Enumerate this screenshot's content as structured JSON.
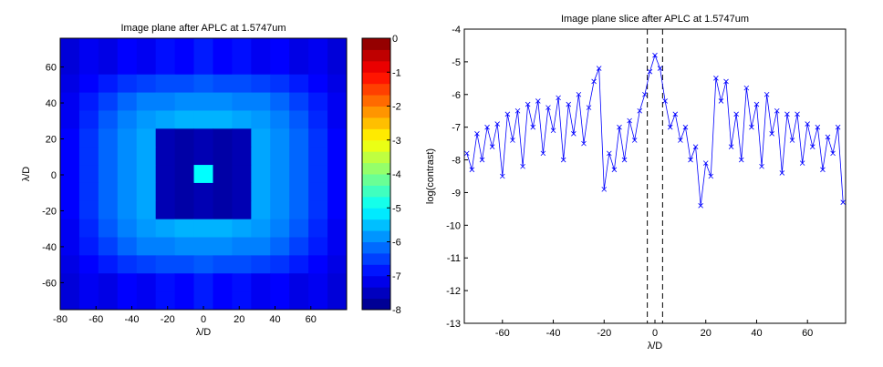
{
  "chart_data": [
    {
      "type": "heatmap",
      "title": "Image plane after APLC at 1.5747um",
      "xlabel": "λ/D",
      "ylabel": "λ/D",
      "xlim": [
        -80,
        80
      ],
      "ylim": [
        -75,
        76
      ],
      "xticks": [
        -80,
        -60,
        -40,
        -20,
        0,
        20,
        40,
        60
      ],
      "yticks": [
        -60,
        -40,
        -20,
        0,
        20,
        40,
        60
      ],
      "clim": [
        -8,
        0
      ],
      "cticks": [
        0,
        -1,
        -2,
        -3,
        -4,
        -5,
        -6,
        -7,
        -8
      ],
      "colormap": "jet",
      "z": [
        [
          -7.3,
          -7.1,
          -7.2,
          -7.0,
          -7.1,
          -6.9,
          -7.0,
          -6.8,
          -7.0,
          -6.9,
          -7.1,
          -7.0,
          -7.2,
          -7.1,
          -7.3
        ],
        [
          -7.3,
          -7.1,
          -7.2,
          -7.0,
          -7.1,
          -6.9,
          -7.0,
          -6.8,
          -7.0,
          -6.9,
          -7.1,
          -7.0,
          -7.2,
          -7.1,
          -7.3
        ],
        [
          -7.2,
          -7.0,
          -6.8,
          -6.6,
          -6.5,
          -6.4,
          -6.4,
          -6.3,
          -6.4,
          -6.4,
          -6.5,
          -6.6,
          -6.8,
          -7.0,
          -7.2
        ],
        [
          -7.1,
          -6.8,
          -6.5,
          -6.2,
          -6.0,
          -6.0,
          -5.9,
          -5.9,
          -5.9,
          -6.0,
          -6.0,
          -6.2,
          -6.5,
          -6.8,
          -7.1
        ],
        [
          -7.1,
          -6.7,
          -6.3,
          -6.0,
          -5.8,
          -5.7,
          -5.6,
          -5.6,
          -5.6,
          -5.7,
          -5.8,
          -6.0,
          -6.3,
          -6.7,
          -7.1
        ],
        [
          -7.0,
          -6.6,
          -6.2,
          -5.9,
          -5.7,
          -7.6,
          -7.7,
          -7.6,
          -7.7,
          -7.6,
          -5.7,
          -5.9,
          -6.2,
          -6.6,
          -7.0
        ],
        [
          -7.0,
          -6.6,
          -6.2,
          -5.9,
          -5.7,
          -7.6,
          -7.7,
          -7.6,
          -7.7,
          -7.6,
          -5.7,
          -5.9,
          -6.2,
          -6.6,
          -7.0
        ],
        [
          -7.0,
          -6.6,
          -6.2,
          -5.9,
          -5.7,
          -7.6,
          -7.7,
          -5.0,
          -7.7,
          -7.6,
          -5.7,
          -5.9,
          -6.2,
          -6.6,
          -7.0
        ],
        [
          -7.0,
          -6.6,
          -6.2,
          -5.9,
          -5.7,
          -7.6,
          -7.7,
          -7.6,
          -7.7,
          -7.6,
          -5.7,
          -5.9,
          -6.2,
          -6.6,
          -7.0
        ],
        [
          -7.0,
          -6.6,
          -6.2,
          -5.9,
          -5.7,
          -7.6,
          -7.7,
          -7.6,
          -7.7,
          -7.6,
          -5.7,
          -5.9,
          -6.2,
          -6.6,
          -7.0
        ],
        [
          -7.1,
          -6.7,
          -6.3,
          -6.0,
          -5.8,
          -5.7,
          -5.6,
          -5.6,
          -5.6,
          -5.7,
          -5.8,
          -6.0,
          -6.3,
          -6.7,
          -7.1
        ],
        [
          -7.1,
          -6.8,
          -6.5,
          -6.2,
          -6.0,
          -6.0,
          -5.9,
          -5.9,
          -5.9,
          -6.0,
          -6.0,
          -6.2,
          -6.5,
          -6.8,
          -7.1
        ],
        [
          -7.2,
          -7.0,
          -6.8,
          -6.6,
          -6.5,
          -6.4,
          -6.4,
          -6.3,
          -6.4,
          -6.4,
          -6.5,
          -6.6,
          -6.8,
          -7.0,
          -7.2
        ],
        [
          -7.3,
          -7.1,
          -7.2,
          -7.0,
          -7.1,
          -6.9,
          -7.0,
          -6.8,
          -7.0,
          -6.9,
          -7.1,
          -7.0,
          -7.2,
          -7.1,
          -7.3
        ],
        [
          -7.3,
          -7.1,
          -7.2,
          -7.0,
          -7.1,
          -6.9,
          -7.0,
          -6.8,
          -7.0,
          -6.9,
          -7.1,
          -7.0,
          -7.2,
          -7.1,
          -7.3
        ]
      ]
    },
    {
      "type": "line",
      "title": "Image plane slice after APLC at 1.5747um",
      "xlabel": "λ/D",
      "ylabel": "log(contrast)",
      "xlim": [
        -75,
        75
      ],
      "ylim": [
        -13,
        -4
      ],
      "xticks": [
        -60,
        -40,
        -20,
        0,
        20,
        40,
        60
      ],
      "yticks": [
        -13,
        -12,
        -11,
        -10,
        -9,
        -8,
        -7,
        -6,
        -5,
        -4
      ],
      "vlines": [
        -3,
        3
      ],
      "x": [
        -74,
        -72,
        -70,
        -68,
        -66,
        -64,
        -62,
        -60,
        -58,
        -56,
        -54,
        -52,
        -50,
        -48,
        -46,
        -44,
        -42,
        -40,
        -38,
        -36,
        -34,
        -32,
        -30,
        -28,
        -26,
        -24,
        -22,
        -20,
        -18,
        -16,
        -14,
        -12,
        -10,
        -8,
        -6,
        -4,
        -2,
        0,
        2,
        4,
        6,
        8,
        10,
        12,
        14,
        16,
        18,
        20,
        22,
        24,
        26,
        28,
        30,
        32,
        34,
        36,
        38,
        40,
        42,
        44,
        46,
        48,
        50,
        52,
        54,
        56,
        58,
        60,
        62,
        64,
        66,
        68,
        70,
        72,
        74
      ],
      "series": [
        {
          "color": "#0000ff",
          "values": [
            -7.8,
            -8.3,
            -7.2,
            -8.0,
            -7.0,
            -7.6,
            -6.9,
            -8.5,
            -6.6,
            -7.4,
            -6.5,
            -8.2,
            -6.3,
            -7.0,
            -6.2,
            -7.8,
            -6.4,
            -7.1,
            -6.1,
            -8.0,
            -6.3,
            -7.2,
            -6.0,
            -7.5,
            -6.4,
            -5.6,
            -5.2,
            -8.9,
            -7.8,
            -8.3,
            -7.0,
            -8.0,
            -6.8,
            -7.4,
            -6.5,
            -6.0,
            -5.3,
            -4.8,
            -5.2,
            -6.2,
            -7.0,
            -6.6,
            -7.4,
            -7.0,
            -8.0,
            -7.6,
            -9.4,
            -8.1,
            -8.5,
            -5.5,
            -6.2,
            -5.6,
            -7.6,
            -6.6,
            -8.0,
            -5.8,
            -7.0,
            -6.3,
            -8.2,
            -6.0,
            -7.2,
            -6.5,
            -8.4,
            -6.6,
            -7.4,
            -6.6,
            -8.1,
            -6.9,
            -7.6,
            -7.0,
            -8.3,
            -7.3,
            -7.8,
            -7.0,
            -9.3
          ]
        }
      ]
    }
  ]
}
